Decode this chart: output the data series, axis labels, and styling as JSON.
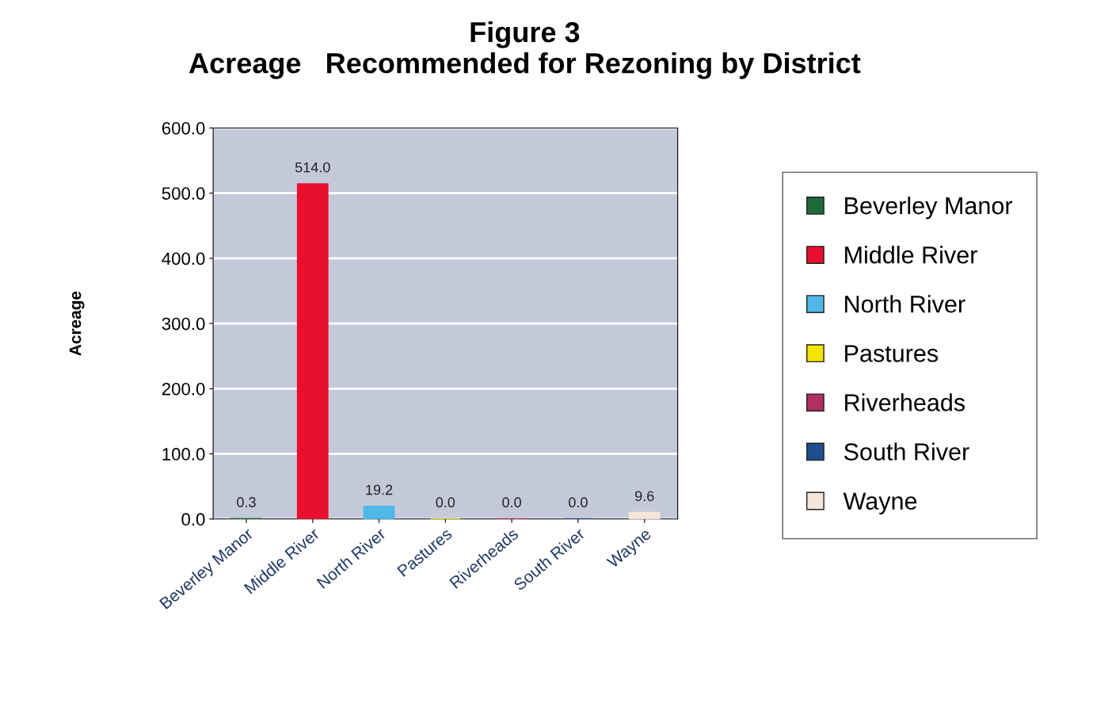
{
  "chart_data": {
    "type": "bar",
    "title": "Figure 3\nAcreage   Recommended for Rezoning by District",
    "ylabel": "Acreage",
    "categories": [
      "Beverley Manor",
      "Middle River",
      "North River",
      "Pastures",
      "Riverheads",
      "South River",
      "Wayne"
    ],
    "series": [
      {
        "name": "Beverley Manor",
        "color": "#1e6b3a",
        "values": [
          0.3,
          null,
          null,
          null,
          null,
          null,
          null
        ],
        "value_labels": [
          "0.3",
          null,
          null,
          null,
          null,
          null,
          null
        ]
      },
      {
        "name": "Middle River",
        "color": "#e8102e",
        "values": [
          null,
          514.0,
          null,
          null,
          null,
          null,
          null
        ],
        "value_labels": [
          null,
          "514.0",
          null,
          null,
          null,
          null,
          null
        ]
      },
      {
        "name": "North River",
        "color": "#4fb8e8",
        "values": [
          null,
          null,
          19.2,
          null,
          null,
          null,
          null
        ],
        "value_labels": [
          null,
          null,
          "19.2",
          null,
          null,
          null,
          null
        ]
      },
      {
        "name": "Pastures",
        "color": "#f2e600",
        "values": [
          null,
          null,
          null,
          0.0,
          null,
          null,
          null
        ],
        "value_labels": [
          null,
          null,
          null,
          "0.0",
          null,
          null,
          null
        ]
      },
      {
        "name": "Riverheads",
        "color": "#b03060",
        "values": [
          null,
          null,
          null,
          null,
          0.0,
          null,
          null
        ],
        "value_labels": [
          null,
          null,
          null,
          null,
          "0.0",
          null,
          null
        ]
      },
      {
        "name": "South River",
        "color": "#1f4e8c",
        "values": [
          null,
          null,
          null,
          null,
          null,
          0.0,
          null
        ],
        "value_labels": [
          null,
          null,
          null,
          null,
          null,
          "0.0",
          null
        ]
      },
      {
        "name": "Wayne",
        "color": "#f5e6d8",
        "values": [
          null,
          null,
          null,
          null,
          null,
          null,
          9.6
        ],
        "value_labels": [
          null,
          null,
          null,
          null,
          null,
          null,
          "9.6"
        ]
      }
    ],
    "ylim": [
      0,
      600
    ],
    "yticks": [
      {
        "value": 0,
        "label": "0.0"
      },
      {
        "value": 100,
        "label": "100.0"
      },
      {
        "value": 200,
        "label": "200.0"
      },
      {
        "value": 300,
        "label": "300.0"
      },
      {
        "value": 400,
        "label": "400.0"
      },
      {
        "value": 500,
        "label": "500.0"
      },
      {
        "value": 600,
        "label": "600.0"
      }
    ],
    "grid": "y",
    "legend": "right"
  }
}
